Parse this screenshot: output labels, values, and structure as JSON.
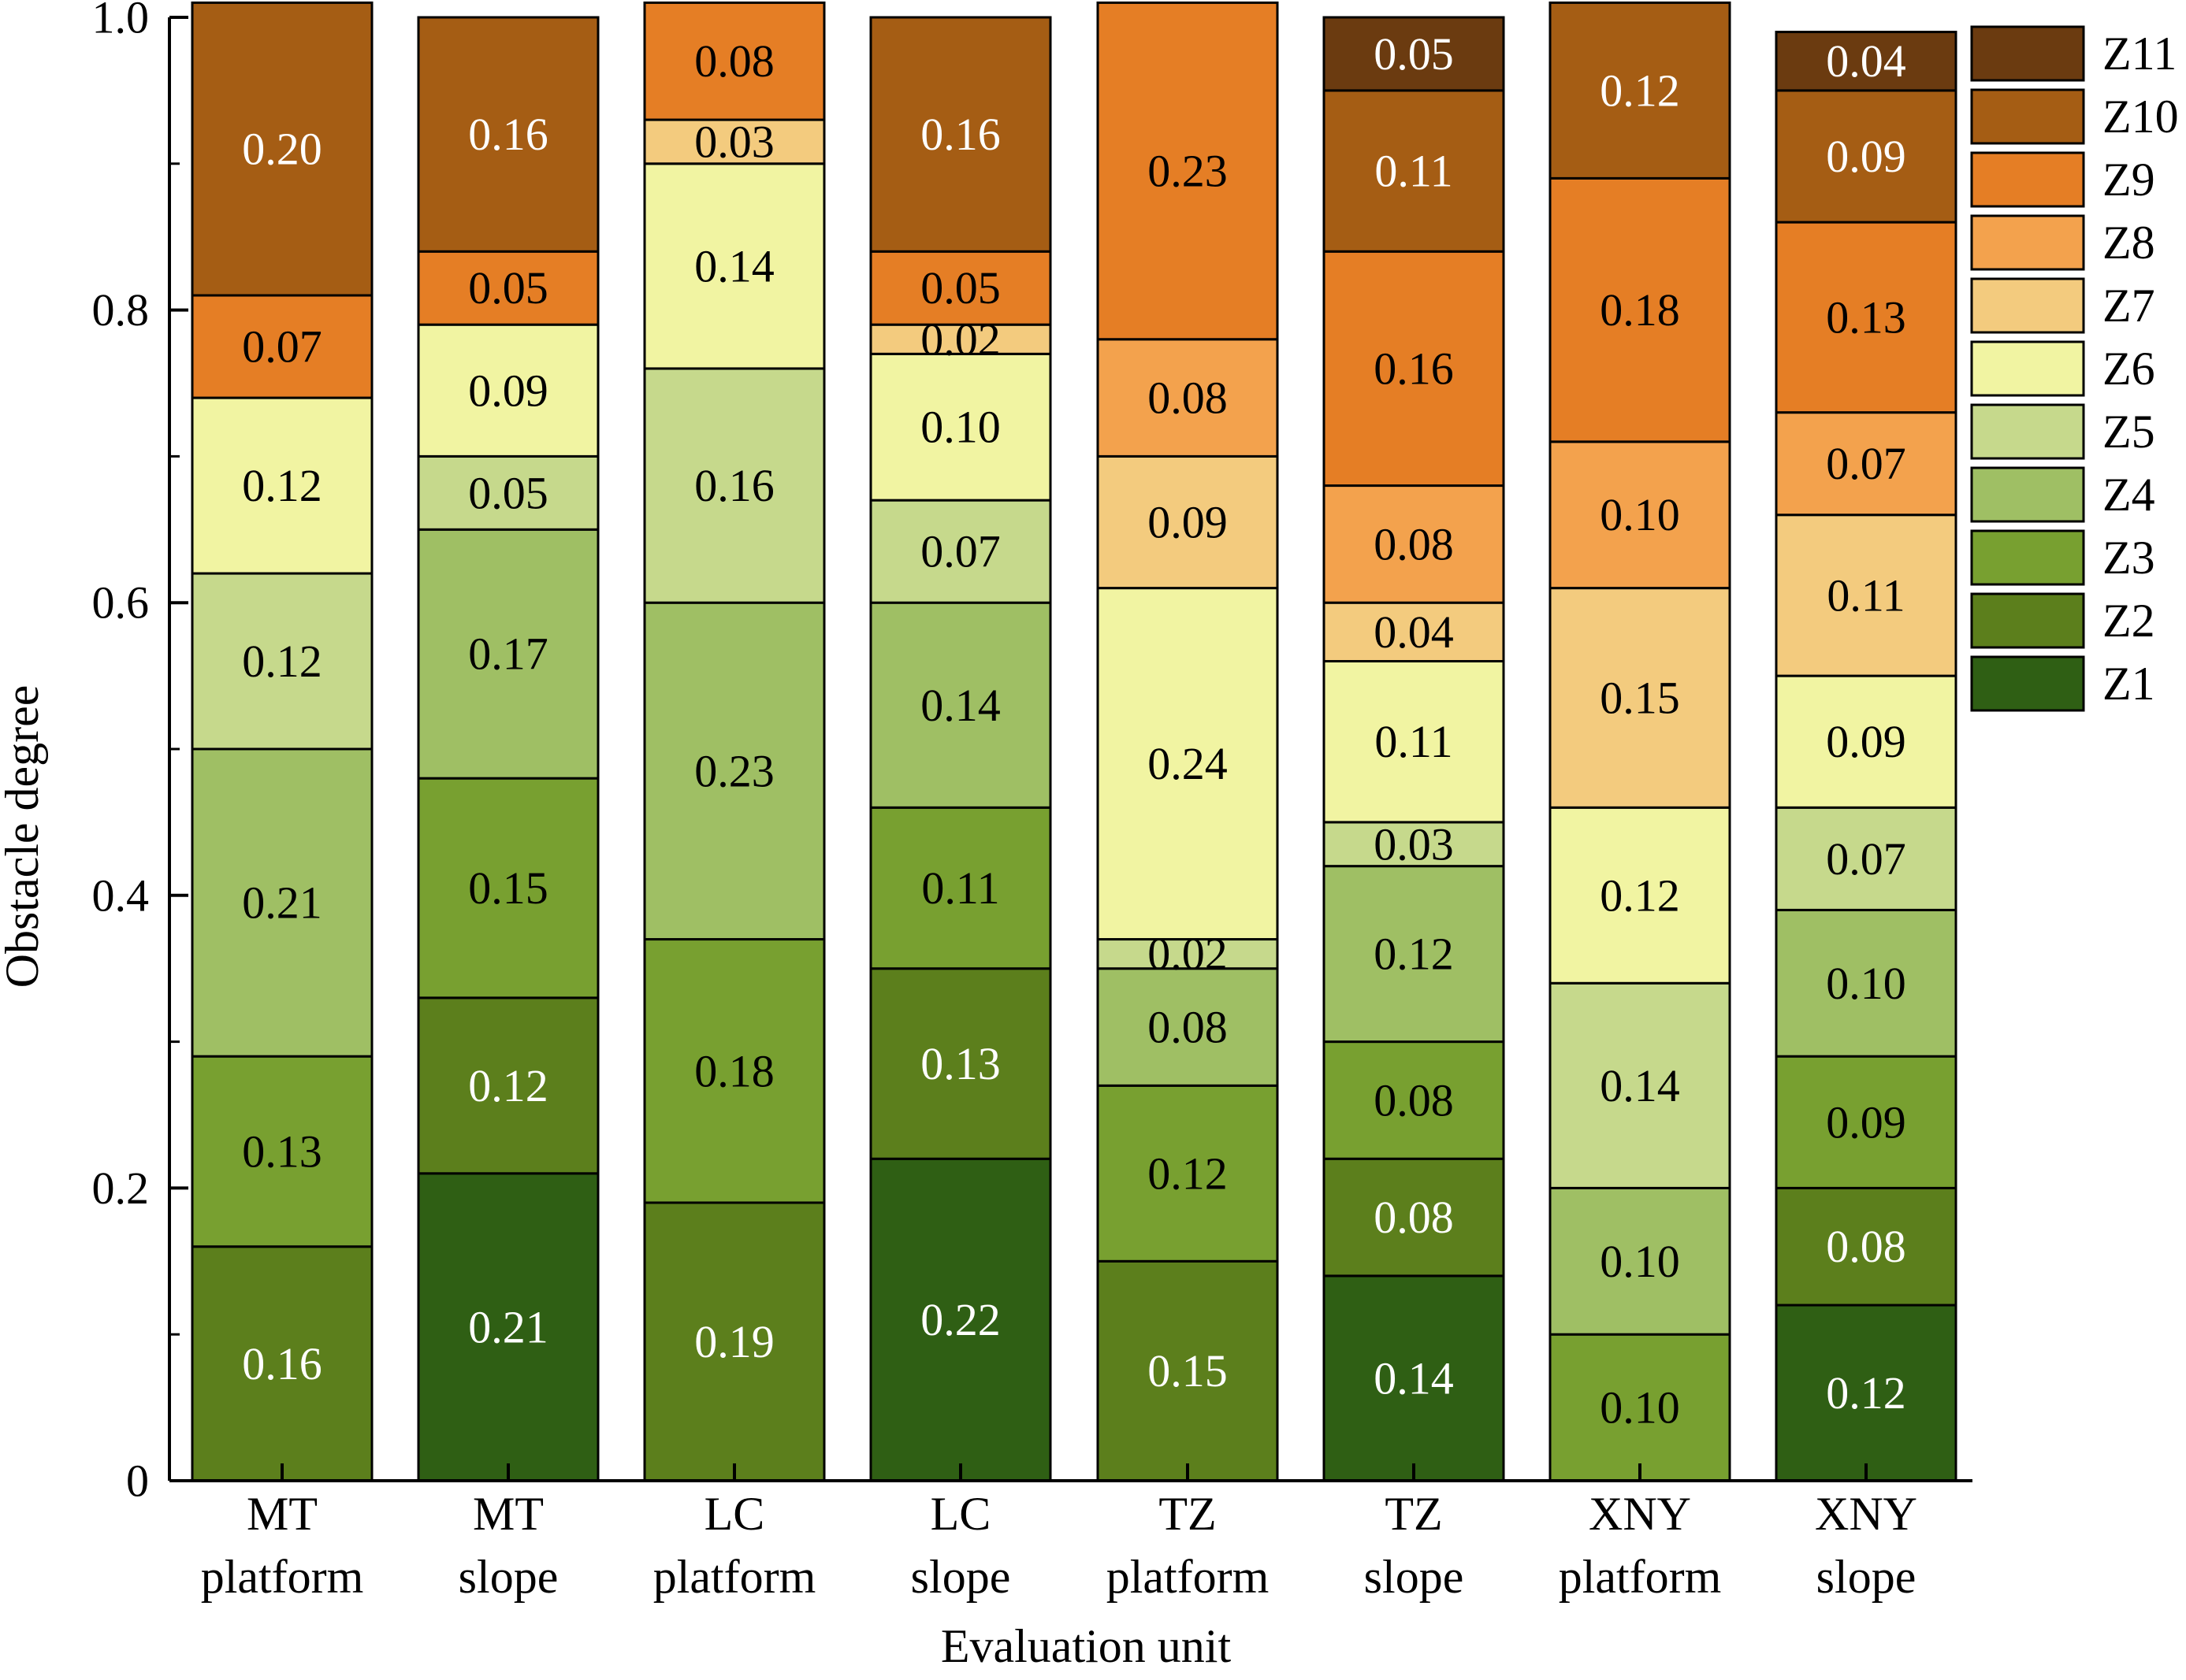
{
  "chart_data": {
    "type": "bar",
    "stacked": true,
    "title": "",
    "xlabel": "Evaluation unit",
    "ylabel": "Obstacle degree",
    "ylim": [
      0,
      1.0
    ],
    "yticks": [
      0,
      0.2,
      0.4,
      0.6,
      0.8,
      1.0
    ],
    "ytick_labels": [
      "0",
      "0.2",
      "0.4",
      "0.6",
      "0.8",
      "1.0"
    ],
    "legend_position": "right",
    "categories": [
      [
        "MT",
        "platform"
      ],
      [
        "MT",
        "slope"
      ],
      [
        "LC",
        "platform"
      ],
      [
        "LC",
        "slope"
      ],
      [
        "TZ",
        "platform"
      ],
      [
        "TZ",
        "slope"
      ],
      [
        "XNY",
        "platform"
      ],
      [
        "XNY",
        "slope"
      ]
    ],
    "bars": [
      {
        "segments": [
          {
            "series": "Z2",
            "value": 0.16,
            "label": "0.16"
          },
          {
            "series": "Z3",
            "value": 0.13,
            "label": "0.13"
          },
          {
            "series": "Z4",
            "value": 0.21,
            "label": "0.21"
          },
          {
            "series": "Z5",
            "value": 0.12,
            "label": "0.12"
          },
          {
            "series": "Z6",
            "value": 0.12,
            "label": "0.12"
          },
          {
            "series": "Z9",
            "value": 0.07,
            "label": "0.07"
          },
          {
            "series": "Z10",
            "value": 0.2,
            "label": "0.20"
          }
        ]
      },
      {
        "segments": [
          {
            "series": "Z1",
            "value": 0.21,
            "label": "0.21"
          },
          {
            "series": "Z2",
            "value": 0.12,
            "label": "0.12"
          },
          {
            "series": "Z3",
            "value": 0.15,
            "label": "0.15"
          },
          {
            "series": "Z4",
            "value": 0.17,
            "label": "0.17"
          },
          {
            "series": "Z5",
            "value": 0.05,
            "label": "0.05"
          },
          {
            "series": "Z6",
            "value": 0.09,
            "label": "0.09"
          },
          {
            "series": "Z9",
            "value": 0.05,
            "label": "0.05"
          },
          {
            "series": "Z10",
            "value": 0.16,
            "label": "0.16"
          }
        ]
      },
      {
        "segments": [
          {
            "series": "Z2",
            "value": 0.19,
            "label": "0.19"
          },
          {
            "series": "Z3",
            "value": 0.18,
            "label": "0.18"
          },
          {
            "series": "Z4",
            "value": 0.23,
            "label": "0.23"
          },
          {
            "series": "Z5",
            "value": 0.16,
            "label": "0.16"
          },
          {
            "series": "Z6",
            "value": 0.14,
            "label": "0.14"
          },
          {
            "series": "Z7",
            "value": 0.03,
            "label": "0.03"
          },
          {
            "series": "Z9",
            "value": 0.08,
            "label": "0.08"
          }
        ]
      },
      {
        "segments": [
          {
            "series": "Z1",
            "value": 0.22,
            "label": "0.22"
          },
          {
            "series": "Z2",
            "value": 0.13,
            "label": "0.13"
          },
          {
            "series": "Z3",
            "value": 0.11,
            "label": "0.11"
          },
          {
            "series": "Z4",
            "value": 0.14,
            "label": "0.14"
          },
          {
            "series": "Z5",
            "value": 0.07,
            "label": "0.07"
          },
          {
            "series": "Z6",
            "value": 0.1,
            "label": "0.10"
          },
          {
            "series": "Z7",
            "value": 0.02,
            "label": "0.02"
          },
          {
            "series": "Z9",
            "value": 0.05,
            "label": "0.05"
          },
          {
            "series": "Z10",
            "value": 0.16,
            "label": "0.16"
          }
        ]
      },
      {
        "segments": [
          {
            "series": "Z2",
            "value": 0.15,
            "label": "0.15"
          },
          {
            "series": "Z3",
            "value": 0.12,
            "label": "0.12"
          },
          {
            "series": "Z4",
            "value": 0.08,
            "label": "0.08"
          },
          {
            "series": "Z5",
            "value": 0.02,
            "label": "0.02"
          },
          {
            "series": "Z6",
            "value": 0.24,
            "label": "0.24"
          },
          {
            "series": "Z7",
            "value": 0.09,
            "label": "0.09"
          },
          {
            "series": "Z8",
            "value": 0.08,
            "label": "0.08"
          },
          {
            "series": "Z9",
            "value": 0.23,
            "label": "0.23"
          }
        ]
      },
      {
        "segments": [
          {
            "series": "Z1",
            "value": 0.14,
            "label": "0.14"
          },
          {
            "series": "Z2",
            "value": 0.08,
            "label": "0.08"
          },
          {
            "series": "Z3",
            "value": 0.08,
            "label": "0.08"
          },
          {
            "series": "Z4",
            "value": 0.12,
            "label": "0.12"
          },
          {
            "series": "Z5",
            "value": 0.03,
            "label": "0.03"
          },
          {
            "series": "Z6",
            "value": 0.11,
            "label": "0.11"
          },
          {
            "series": "Z7",
            "value": 0.04,
            "label": "0.04"
          },
          {
            "series": "Z8",
            "value": 0.08,
            "label": "0.08"
          },
          {
            "series": "Z9",
            "value": 0.16,
            "label": "0.16"
          },
          {
            "series": "Z10",
            "value": 0.11,
            "label": "0.11"
          },
          {
            "series": "Z11",
            "value": 0.05,
            "label": "0.05"
          }
        ]
      },
      {
        "segments": [
          {
            "series": "Z3",
            "value": 0.1,
            "label": "0.10"
          },
          {
            "series": "Z4",
            "value": 0.1,
            "label": "0.10"
          },
          {
            "series": "Z5",
            "value": 0.14,
            "label": "0.14"
          },
          {
            "series": "Z6",
            "value": 0.12,
            "label": "0.12"
          },
          {
            "series": "Z7",
            "value": 0.15,
            "label": "0.15"
          },
          {
            "series": "Z8",
            "value": 0.1,
            "label": "0.10"
          },
          {
            "series": "Z9",
            "value": 0.18,
            "label": "0.18"
          },
          {
            "series": "Z10",
            "value": 0.12,
            "label": "0.12"
          }
        ]
      },
      {
        "segments": [
          {
            "series": "Z1",
            "value": 0.12,
            "label": "0.12"
          },
          {
            "series": "Z2",
            "value": 0.08,
            "label": "0.08"
          },
          {
            "series": "Z3",
            "value": 0.09,
            "label": "0.09"
          },
          {
            "series": "Z4",
            "value": 0.1,
            "label": "0.10"
          },
          {
            "series": "Z5",
            "value": 0.07,
            "label": "0.07"
          },
          {
            "series": "Z6",
            "value": 0.09,
            "label": "0.09"
          },
          {
            "series": "Z7",
            "value": 0.11,
            "label": "0.11"
          },
          {
            "series": "Z8",
            "value": 0.07,
            "label": "0.07"
          },
          {
            "series": "Z9",
            "value": 0.13,
            "label": "0.13"
          },
          {
            "series": "Z10",
            "value": 0.09,
            "label": "0.09"
          },
          {
            "series": "Z11",
            "value": 0.04,
            "label": "0.04"
          }
        ]
      }
    ],
    "series": [
      {
        "name": "Z11",
        "color": "#6b3b10",
        "label_color": "#ffffff"
      },
      {
        "name": "Z10",
        "color": "#a55d14",
        "label_color": "#ffffff"
      },
      {
        "name": "Z9",
        "color": "#e57e25",
        "label_color": "#000000"
      },
      {
        "name": "Z8",
        "color": "#f3a24d",
        "label_color": "#000000"
      },
      {
        "name": "Z7",
        "color": "#f3cb7e",
        "label_color": "#000000"
      },
      {
        "name": "Z6",
        "color": "#f1f4a2",
        "label_color": "#000000"
      },
      {
        "name": "Z5",
        "color": "#c6d98c",
        "label_color": "#000000"
      },
      {
        "name": "Z4",
        "color": "#9fbf64",
        "label_color": "#000000"
      },
      {
        "name": "Z3",
        "color": "#78a030",
        "label_color": "#000000"
      },
      {
        "name": "Z2",
        "color": "#5c7f1c",
        "label_color": "#ffffff"
      },
      {
        "name": "Z1",
        "color": "#2f5f14",
        "label_color": "#ffffff"
      }
    ]
  }
}
